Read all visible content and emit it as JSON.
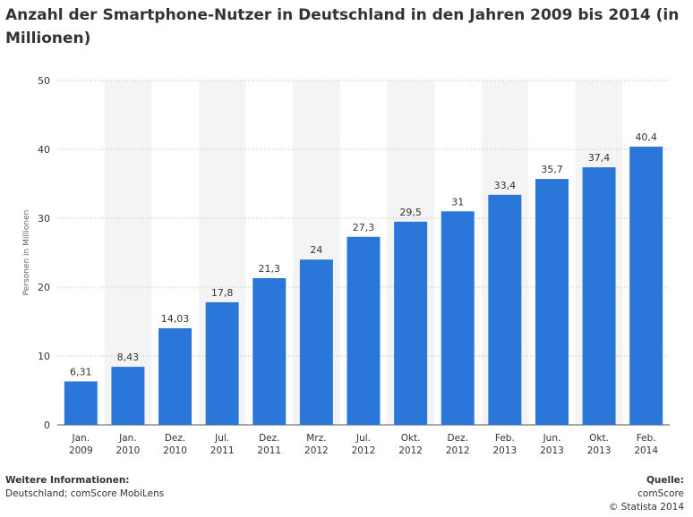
{
  "title": "Anzahl der Smartphone-Nutzer in Deutschland in den Jahren 2009 bis 2014 (in Millionen)",
  "footer": {
    "info_heading": "Weitere Informationen:",
    "info_text": "Deutschland; comScore MobiLens",
    "source_heading": "Quelle:",
    "source_text": "comScore",
    "copyright": "© Statista 2014"
  },
  "colors": {
    "bar": "#2a77d9",
    "band": "#f4f4f4",
    "grid": "#bbbbbb",
    "text": "#333333"
  },
  "chart_data": {
    "type": "bar",
    "title": "Anzahl der Smartphone-Nutzer in Deutschland in den Jahren 2009 bis 2014 (in Millionen)",
    "ylabel": "Personen in Millionen",
    "xlabel": "",
    "ylim": [
      0,
      50
    ],
    "yticks": [
      0,
      10,
      20,
      30,
      40,
      50
    ],
    "grid": true,
    "categories": [
      [
        "Jan.",
        "2009"
      ],
      [
        "Jan.",
        "2010"
      ],
      [
        "Dez.",
        "2010"
      ],
      [
        "Jul.",
        "2011"
      ],
      [
        "Dez.",
        "2011"
      ],
      [
        "Mrz.",
        "2012"
      ],
      [
        "Jul.",
        "2012"
      ],
      [
        "Okt.",
        "2012"
      ],
      [
        "Dez.",
        "2012"
      ],
      [
        "Feb.",
        "2013"
      ],
      [
        "Jun.",
        "2013"
      ],
      [
        "Okt.",
        "2013"
      ],
      [
        "Feb.",
        "2014"
      ]
    ],
    "values": [
      6.31,
      8.43,
      14.03,
      17.8,
      21.3,
      24,
      27.3,
      29.5,
      31,
      33.4,
      35.7,
      37.4,
      40.4
    ],
    "labels": [
      "6,31",
      "8,43",
      "14,03",
      "17,8",
      "21,3",
      "24",
      "27,3",
      "29,5",
      "31",
      "33,4",
      "35,7",
      "37,4",
      "40,4"
    ]
  }
}
